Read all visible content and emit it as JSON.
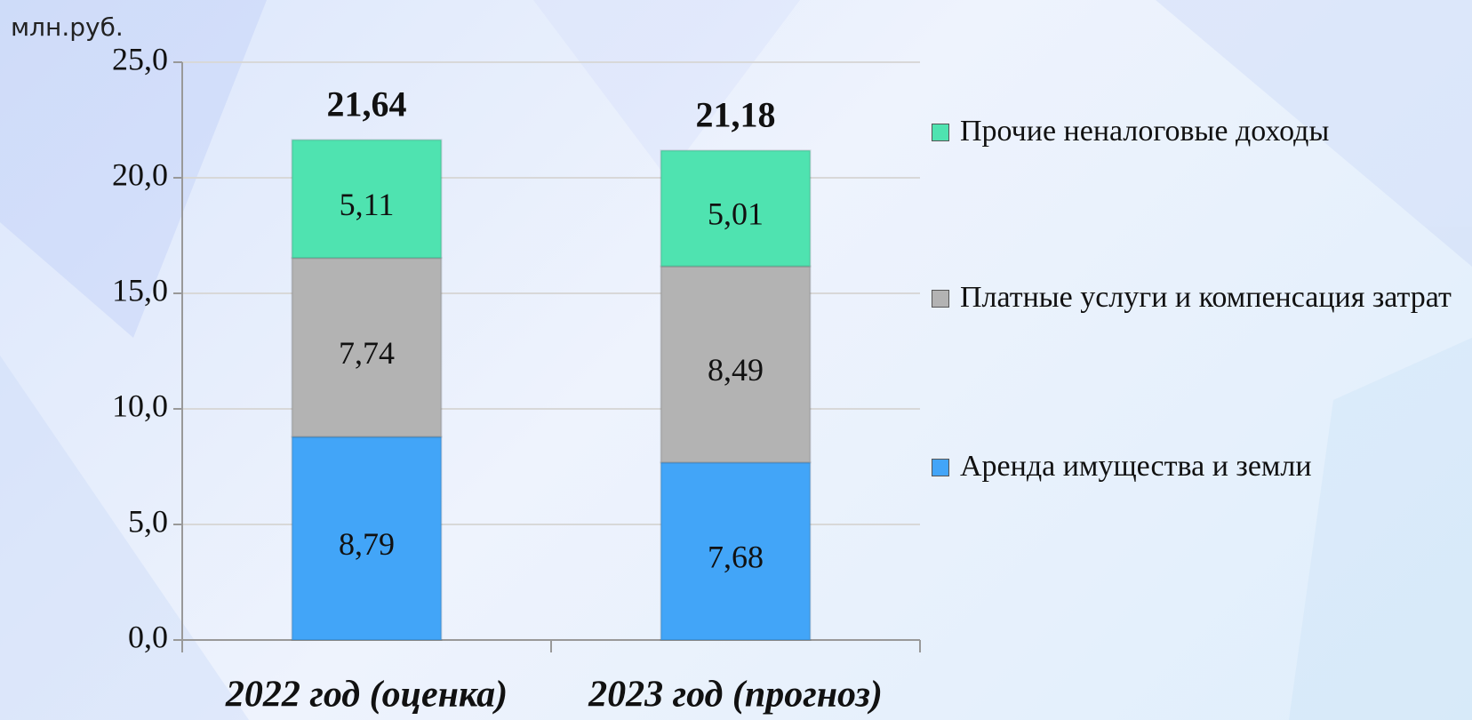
{
  "chart_data": {
    "type": "stacked_bar",
    "unit_label": "млн.руб.",
    "categories": [
      "2022 год (оценка)",
      "2023 год (прогноз)"
    ],
    "series": [
      {
        "name": "Аренда имущества и земли",
        "color": "#42a5f8",
        "values": [
          8.79,
          7.68
        ],
        "value_labels": [
          "8,79",
          "7,68"
        ]
      },
      {
        "name": "Платные услуги и компенсация затрат",
        "color": "#b3b3b3",
        "values": [
          7.74,
          8.49
        ],
        "value_labels": [
          "7,74",
          "8,49"
        ]
      },
      {
        "name": "Прочие неналоговые доходы",
        "color": "#4fe3b0",
        "values": [
          5.11,
          5.01
        ],
        "value_labels": [
          "5,11",
          "5,01"
        ]
      }
    ],
    "totals": [
      21.64,
      21.18
    ],
    "total_labels": [
      "21,64",
      "21,18"
    ],
    "ylim": [
      0,
      25
    ],
    "yticks": [
      {
        "value": 0,
        "label": "0,0"
      },
      {
        "value": 5,
        "label": "5,0"
      },
      {
        "value": 10,
        "label": "10,0"
      },
      {
        "value": 15,
        "label": "15,0"
      },
      {
        "value": 20,
        "label": "20,0"
      },
      {
        "value": 25,
        "label": "25,0"
      }
    ],
    "grid": true,
    "legend": "right"
  }
}
